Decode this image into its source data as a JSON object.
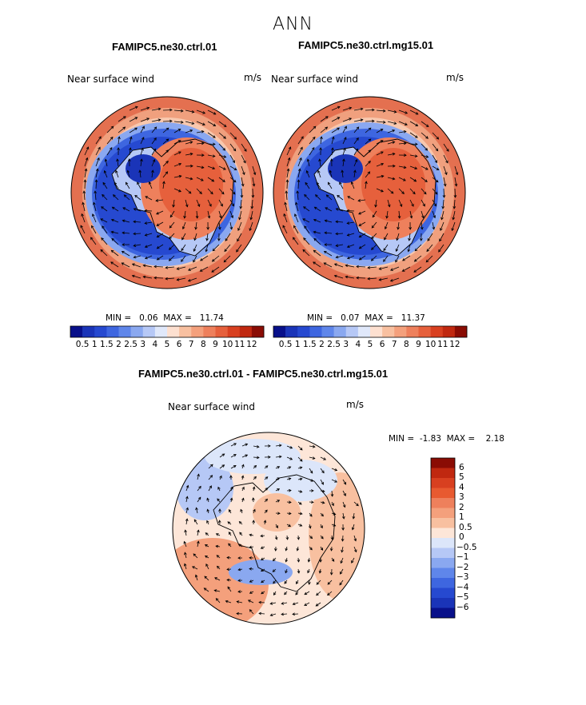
{
  "figure": {
    "season": "ANN"
  },
  "panels": [
    {
      "id": "left",
      "case": "FAMIPC5.ne30.ctrl.01",
      "variable": "Near surface wind",
      "units": "m/s",
      "stats": "MIN =   0.06  MAX =   11.74"
    },
    {
      "id": "right",
      "case": "FAMIPC5.ne30.ctrl.mg15.01",
      "variable": "Near surface wind",
      "units": "m/s",
      "stats": "MIN =   0.07  MAX =   11.37"
    },
    {
      "id": "diff",
      "case": "FAMIPC5.ne30.ctrl.01 - FAMIPC5.ne30.ctrl.mg15.01",
      "variable": "Near surface wind",
      "units": "m/s",
      "stats": "MIN =  -1.83  MAX =    2.18"
    }
  ],
  "colorbar_top": {
    "labels": [
      "0.5",
      "1",
      "1.5",
      "2",
      "2.5",
      "3",
      "4",
      "5",
      "6",
      "7",
      "8",
      "9",
      "10",
      "11",
      "12"
    ],
    "colors": [
      "#08108a",
      "#1a34b8",
      "#2649d0",
      "#3e66e0",
      "#5f86ea",
      "#8aa8f0",
      "#b6c8f6",
      "#e0e8fa",
      "#fde0d0",
      "#f8c0a0",
      "#f4a07c",
      "#ee805c",
      "#e6603c",
      "#d84020",
      "#c02810",
      "#8a0c04"
    ]
  },
  "colorbar_diff": {
    "labels": [
      "6",
      "5",
      "4",
      "3",
      "2",
      "1",
      "0.5",
      "0",
      "-0.5",
      "-1",
      "-2",
      "-3",
      "-4",
      "-5",
      "-6"
    ],
    "colors": [
      "#8a0c04",
      "#c02810",
      "#d84020",
      "#e85a30",
      "#ee805c",
      "#f4a07c",
      "#f8c0a0",
      "#fde6d8",
      "#dce6fa",
      "#b6c8f6",
      "#8aa8f0",
      "#5f86ea",
      "#3e66e0",
      "#2649d0",
      "#1a34b8",
      "#08108a"
    ]
  }
}
